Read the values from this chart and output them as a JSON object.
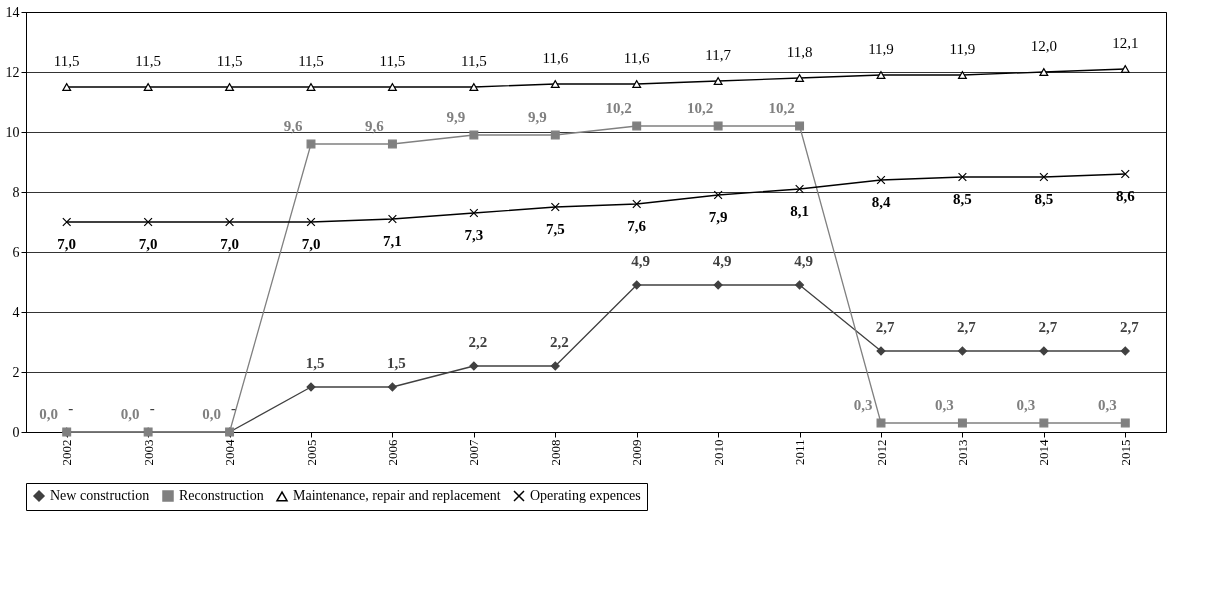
{
  "chart_data": {
    "type": "line",
    "categories": [
      "2002",
      "2003",
      "2004",
      "2005",
      "2006",
      "2007",
      "2008",
      "2009",
      "2010",
      "2011",
      "2012",
      "2013",
      "2014",
      "2015"
    ],
    "series": [
      {
        "name": "New construction",
        "color": "#404040",
        "marker": "diamond",
        "values": [
          0,
          0,
          0,
          1.5,
          1.5,
          2.2,
          2.2,
          4.9,
          4.9,
          4.9,
          2.7,
          2.7,
          2.7,
          2.7
        ],
        "value_labels": [
          "-",
          "-",
          "-",
          "1,5",
          "1,5",
          "2,2",
          "2,2",
          "4,9",
          "4,9",
          "4,9",
          "2,7",
          "2,7",
          "2,7",
          "2,7"
        ]
      },
      {
        "name": "Reconstruction",
        "color": "#808080",
        "marker": "square",
        "values": [
          0,
          0,
          0,
          9.6,
          9.6,
          9.9,
          9.9,
          10.2,
          10.2,
          10.2,
          0.3,
          0.3,
          0.3,
          0.3
        ],
        "value_labels": [
          "0,0",
          "0,0",
          "0,0",
          "9,6",
          "9,6",
          "9,9",
          "9,9",
          "10,2",
          "10,2",
          "10,2",
          "0,3",
          "0,3",
          "0,3",
          "0,3"
        ]
      },
      {
        "name": "Maintenance, repair and replacement",
        "color": "#000000",
        "marker": "triangle",
        "values": [
          11.5,
          11.5,
          11.5,
          11.5,
          11.5,
          11.5,
          11.6,
          11.6,
          11.7,
          11.8,
          11.9,
          11.9,
          12.0,
          12.1
        ],
        "value_labels": [
          "11,5",
          "11,5",
          "11,5",
          "11,5",
          "11,5",
          "11,5",
          "11,6",
          "11,6",
          "11,7",
          "11,8",
          "11,9",
          "11,9",
          "12,0",
          "12,1"
        ]
      },
      {
        "name": "Operating expences",
        "color": "#000000",
        "marker": "cross",
        "values": [
          7.0,
          7.0,
          7.0,
          7.0,
          7.1,
          7.3,
          7.5,
          7.6,
          7.9,
          8.1,
          8.4,
          8.5,
          8.5,
          8.6
        ],
        "value_labels": [
          "7,0",
          "7,0",
          "7,0",
          "7,0",
          "7,1",
          "7,3",
          "7,5",
          "7,6",
          "7,9",
          "8,1",
          "8,4",
          "8,5",
          "8,5",
          "8,6"
        ]
      }
    ],
    "ylim": [
      0,
      14
    ],
    "yticks": [
      0,
      2,
      4,
      6,
      8,
      10,
      12,
      14
    ],
    "grid": "y",
    "legend": "bottom"
  }
}
